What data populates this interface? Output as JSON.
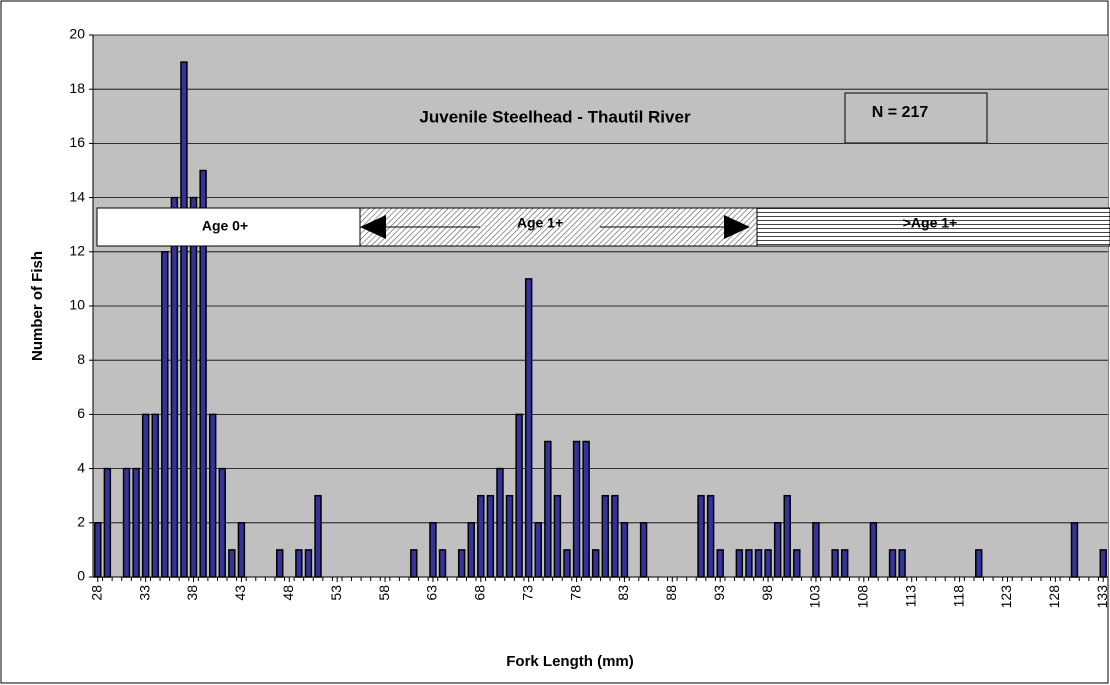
{
  "chart_data": {
    "type": "bar",
    "title": "Juvenile Steelhead - Thautil River",
    "annotations": [
      "N = 217",
      "Age 0+",
      "Age 1+",
      ">Age 1+"
    ],
    "x_label": "Fork Length (mm)",
    "y_label": "Number of Fish",
    "x": [
      28,
      29,
      30,
      31,
      32,
      33,
      34,
      35,
      36,
      37,
      38,
      39,
      40,
      41,
      42,
      43,
      44,
      45,
      46,
      47,
      48,
      49,
      50,
      51,
      52,
      53,
      54,
      55,
      56,
      57,
      58,
      59,
      60,
      61,
      62,
      63,
      64,
      65,
      66,
      67,
      68,
      69,
      70,
      71,
      72,
      73,
      74,
      75,
      76,
      77,
      78,
      79,
      80,
      81,
      82,
      83,
      84,
      85,
      86,
      87,
      88,
      89,
      90,
      91,
      92,
      93,
      94,
      95,
      96,
      97,
      98,
      99,
      100,
      101,
      102,
      103,
      104,
      105,
      106,
      107,
      108,
      109,
      110,
      111,
      112,
      113,
      114,
      115,
      116,
      117,
      118,
      119,
      120,
      121,
      122,
      123,
      124,
      125,
      126,
      127,
      128,
      129,
      130,
      131,
      132,
      133
    ],
    "values": [
      2,
      4,
      0,
      4,
      4,
      6,
      6,
      12,
      14,
      19,
      14,
      15,
      6,
      4,
      1,
      2,
      0,
      0,
      0,
      1,
      0,
      1,
      1,
      3,
      0,
      0,
      0,
      0,
      0,
      0,
      0,
      0,
      0,
      1,
      0,
      2,
      1,
      0,
      1,
      2,
      3,
      3,
      4,
      3,
      6,
      11,
      2,
      5,
      3,
      1,
      5,
      5,
      1,
      3,
      3,
      2,
      0,
      2,
      0,
      0,
      0,
      0,
      0,
      3,
      3,
      1,
      0,
      1,
      1,
      1,
      1,
      2,
      3,
      1,
      0,
      2,
      0,
      1,
      1,
      0,
      0,
      2,
      0,
      1,
      1,
      0,
      0,
      0,
      0,
      0,
      0,
      0,
      1,
      0,
      0,
      0,
      0,
      0,
      0,
      0,
      0,
      0,
      2,
      0,
      0,
      1
    ],
    "color": "#333399",
    "xlim": [
      27.5,
      133.5
    ],
    "xticks": [
      28,
      33,
      38,
      43,
      48,
      53,
      58,
      63,
      68,
      73,
      78,
      83,
      88,
      93,
      98,
      103,
      108,
      113,
      118,
      123,
      128,
      133
    ],
    "ylim": [
      0,
      20
    ],
    "yticks": [
      0,
      2,
      4,
      6,
      8,
      10,
      12,
      14,
      16,
      18,
      20
    ],
    "grid": true
  }
}
